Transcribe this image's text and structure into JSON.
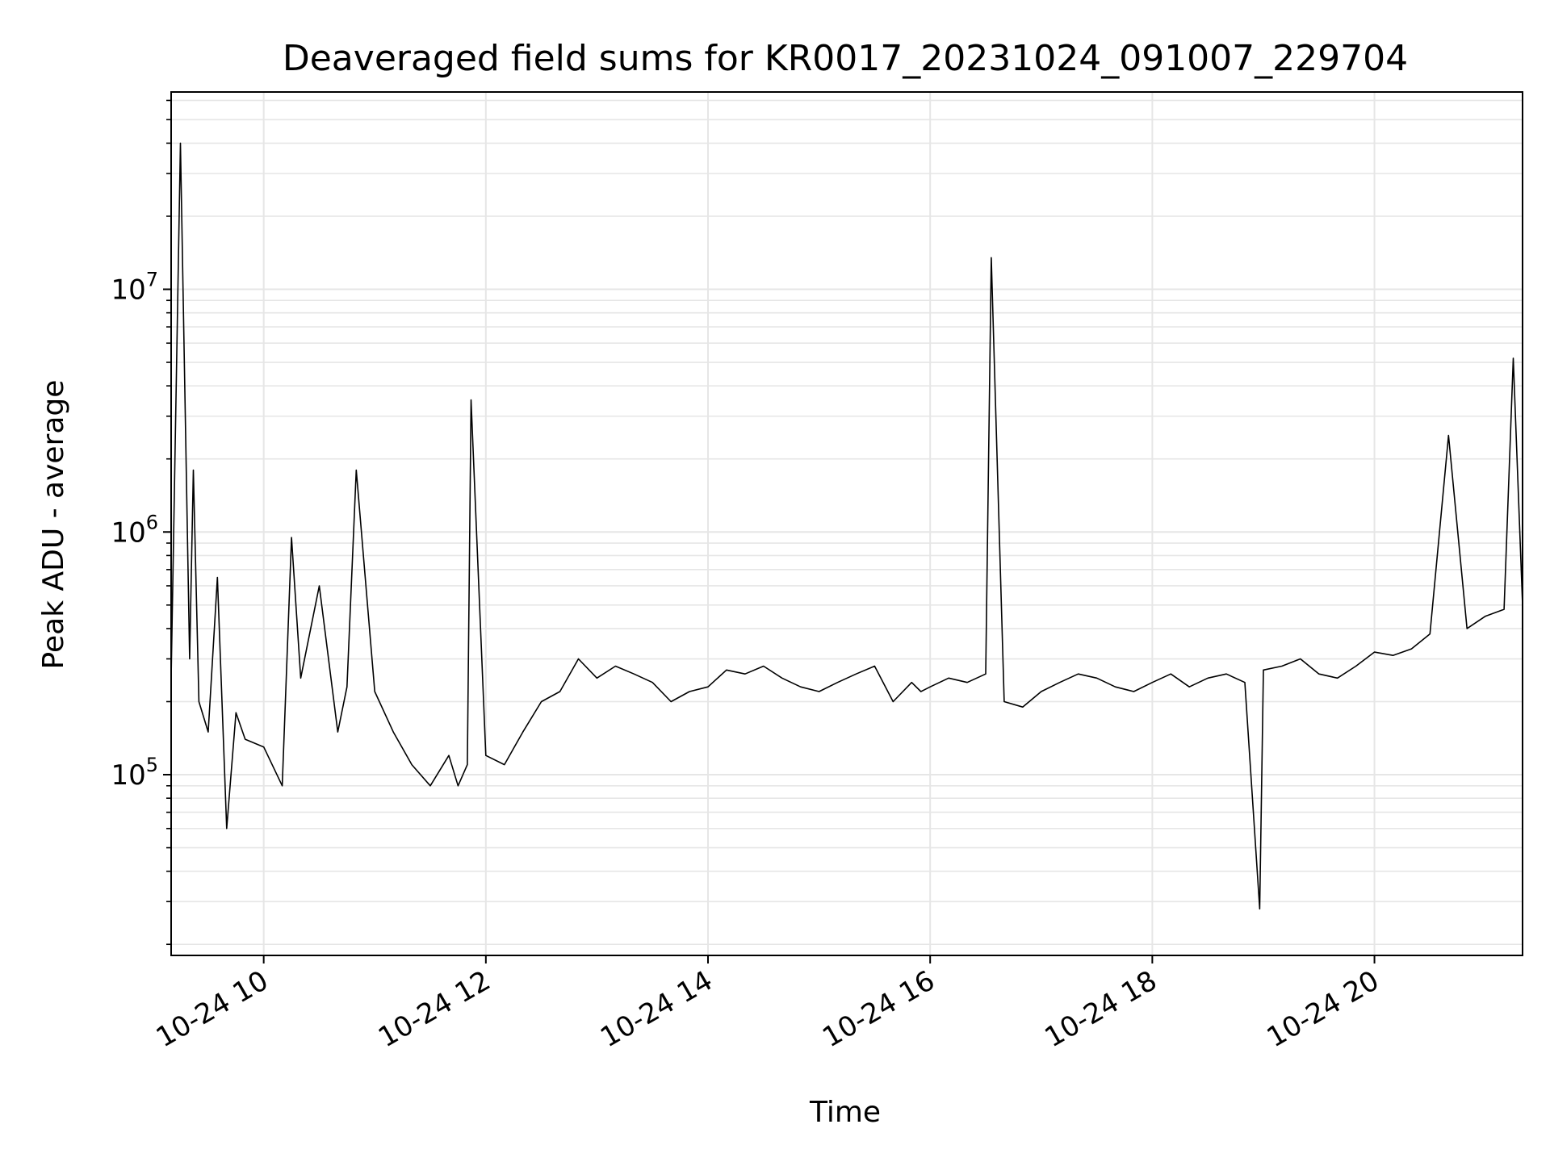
{
  "chart_data": {
    "type": "line",
    "title": "Deaveraged field sums for KR0017_20231024_091007_229704",
    "xlabel": "Time",
    "ylabel": "Peak ADU - average",
    "yscale": "log",
    "xlim": [
      "2023-10-24 09:10",
      "2023-10-24 21:20"
    ],
    "ylim": [
      18000,
      65000000
    ],
    "grid": true,
    "x_ticks": [
      "2023-10-24 10:00",
      "2023-10-24 12:00",
      "2023-10-24 14:00",
      "2023-10-24 16:00",
      "2023-10-24 18:00",
      "2023-10-24 20:00"
    ],
    "x_tick_labels": [
      "10-24 10",
      "10-24 12",
      "10-24 14",
      "10-24 16",
      "10-24 18",
      "10-24 20"
    ],
    "y_ticks": [
      100000,
      1000000,
      10000000
    ],
    "y_tick_labels": [
      {
        "base": "10",
        "exp": "5"
      },
      {
        "base": "10",
        "exp": "6"
      },
      {
        "base": "10",
        "exp": "7"
      }
    ],
    "line_color": "#000000",
    "series": [
      {
        "x": [
          "2023-10-24 09:10",
          "2023-10-24 09:15",
          "2023-10-24 09:20",
          "2023-10-24 09:22",
          "2023-10-24 09:25",
          "2023-10-24 09:30",
          "2023-10-24 09:35",
          "2023-10-24 09:40",
          "2023-10-24 09:45",
          "2023-10-24 09:50",
          "2023-10-24 10:00",
          "2023-10-24 10:10",
          "2023-10-24 10:15",
          "2023-10-24 10:20",
          "2023-10-24 10:30",
          "2023-10-24 10:40",
          "2023-10-24 10:45",
          "2023-10-24 10:50",
          "2023-10-24 11:00",
          "2023-10-24 11:10",
          "2023-10-24 11:20",
          "2023-10-24 11:30",
          "2023-10-24 11:40",
          "2023-10-24 11:45",
          "2023-10-24 11:50",
          "2023-10-24 11:52",
          "2023-10-24 12:00",
          "2023-10-24 12:10",
          "2023-10-24 12:20",
          "2023-10-24 12:30",
          "2023-10-24 12:40",
          "2023-10-24 12:50",
          "2023-10-24 13:00",
          "2023-10-24 13:10",
          "2023-10-24 13:20",
          "2023-10-24 13:30",
          "2023-10-24 13:40",
          "2023-10-24 13:50",
          "2023-10-24 14:00",
          "2023-10-24 14:10",
          "2023-10-24 14:20",
          "2023-10-24 14:30",
          "2023-10-24 14:40",
          "2023-10-24 14:50",
          "2023-10-24 15:00",
          "2023-10-24 15:10",
          "2023-10-24 15:20",
          "2023-10-24 15:30",
          "2023-10-24 15:40",
          "2023-10-24 15:50",
          "2023-10-24 15:55",
          "2023-10-24 16:00",
          "2023-10-24 16:10",
          "2023-10-24 16:20",
          "2023-10-24 16:30",
          "2023-10-24 16:33",
          "2023-10-24 16:40",
          "2023-10-24 16:50",
          "2023-10-24 17:00",
          "2023-10-24 17:10",
          "2023-10-24 17:20",
          "2023-10-24 17:30",
          "2023-10-24 17:40",
          "2023-10-24 17:50",
          "2023-10-24 18:00",
          "2023-10-24 18:10",
          "2023-10-24 18:20",
          "2023-10-24 18:30",
          "2023-10-24 18:40",
          "2023-10-24 18:50",
          "2023-10-24 18:58",
          "2023-10-24 19:00",
          "2023-10-24 19:10",
          "2023-10-24 19:20",
          "2023-10-24 19:30",
          "2023-10-24 19:40",
          "2023-10-24 19:50",
          "2023-10-24 20:00",
          "2023-10-24 20:10",
          "2023-10-24 20:20",
          "2023-10-24 20:30",
          "2023-10-24 20:40",
          "2023-10-24 20:50",
          "2023-10-24 21:00",
          "2023-10-24 21:10",
          "2023-10-24 21:15",
          "2023-10-24 21:20"
        ],
        "y": [
          250000,
          40000000,
          300000,
          1800000,
          200000,
          150000,
          650000,
          60000,
          180000,
          140000,
          130000,
          90000,
          950000,
          250000,
          600000,
          150000,
          230000,
          1800000,
          220000,
          150000,
          110000,
          90000,
          120000,
          90000,
          110000,
          3500000,
          120000,
          110000,
          150000,
          200000,
          220000,
          300000,
          250000,
          280000,
          260000,
          240000,
          200000,
          220000,
          230000,
          270000,
          260000,
          280000,
          250000,
          230000,
          220000,
          240000,
          260000,
          280000,
          200000,
          240000,
          220000,
          230000,
          250000,
          240000,
          260000,
          13500000,
          200000,
          190000,
          220000,
          240000,
          260000,
          250000,
          230000,
          220000,
          240000,
          260000,
          230000,
          250000,
          260000,
          240000,
          28000,
          270000,
          280000,
          300000,
          260000,
          250000,
          280000,
          320000,
          310000,
          330000,
          380000,
          2500000,
          400000,
          450000,
          480000,
          5200000,
          500000
        ]
      }
    ]
  }
}
